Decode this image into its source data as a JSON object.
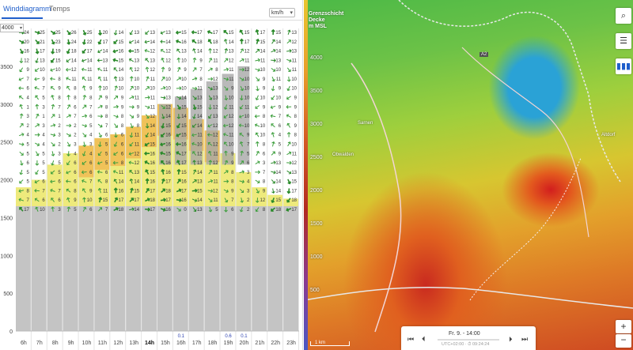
{
  "tabs": [
    {
      "label": "Winddiagramm",
      "active": true
    },
    {
      "label": "Temps",
      "active": false
    }
  ],
  "unit_select": {
    "value": "km/h"
  },
  "altitude_select": {
    "value": "4000"
  },
  "diagram": {
    "y_ticks": [
      "0",
      "500",
      "1000",
      "1500",
      "2000",
      "2500",
      "3000",
      "3500"
    ],
    "hours": [
      "6h",
      "7h",
      "8h",
      "9h",
      "10h",
      "11h",
      "12h",
      "13h",
      "14h",
      "15h",
      "16h",
      "17h",
      "18h",
      "19h",
      "20h",
      "21h",
      "22h",
      "23h"
    ],
    "current_hour": "14h",
    "precip": {
      "16h": "0.1",
      "19h": "0.6",
      "20h": "0.1"
    },
    "colors": {
      "terrain": "#c4c4c4",
      "cloud": "#a8a8a8",
      "boundary_low": "#e8e350",
      "boundary_high": "#f1b14a",
      "arrow": "#2a8a2a"
    }
  },
  "wind_columns": {
    "6h": [
      "24",
      "20",
      "16",
      "12",
      "9",
      "7",
      "6",
      "4",
      "1",
      "3",
      "2",
      "4",
      "5",
      "5",
      "6",
      "5",
      "5",
      "8",
      "7",
      "17"
    ],
    "7h": [
      "25",
      "21",
      "17",
      "13",
      "10",
      "9",
      "7",
      "5",
      "3",
      "1",
      "3",
      "4",
      "4",
      "5",
      "5",
      "5",
      "6",
      "7",
      "6",
      "10"
    ],
    "8h": [
      "25",
      "23",
      "19",
      "15",
      "10",
      "8",
      "9",
      "8",
      "7",
      "1",
      "2",
      "3",
      "2",
      "3",
      "5",
      "5",
      "6",
      "7",
      "6",
      "3"
    ],
    "9h": [
      "26",
      "24",
      "18",
      "14",
      "12",
      "11",
      "8",
      "8",
      "6",
      "7",
      "2",
      "2",
      "3",
      "4",
      "6",
      "6",
      "6",
      "8",
      "9",
      "5"
    ],
    "10h": [
      "25",
      "22",
      "17",
      "14",
      "11",
      "11",
      "9",
      "8",
      "7",
      "6",
      "5",
      "4",
      "3",
      "4",
      "6",
      "6",
      "7",
      "9",
      "10",
      "6"
    ],
    "11h": [
      "20",
      "17",
      "14",
      "13",
      "11",
      "11",
      "10",
      "9",
      "8",
      "8",
      "7",
      "6",
      "5",
      "5",
      "5",
      "6",
      "8",
      "11",
      "15",
      "7"
    ],
    "12h": [
      "14",
      "15",
      "16",
      "15",
      "14",
      "13",
      "10",
      "9",
      "9",
      "8",
      "8",
      "6",
      "6",
      "6",
      "8",
      "11",
      "14",
      "16",
      "17",
      "18"
    ],
    "13h": [
      "13",
      "14",
      "15",
      "13",
      "12",
      "10",
      "10",
      "11",
      "9",
      "9",
      "8",
      "11",
      "11",
      "12",
      "12",
      "13",
      "14",
      "15",
      "17",
      "14"
    ],
    "14h": [
      "13",
      "14",
      "12",
      "13",
      "12",
      "11",
      "10",
      "11",
      "11",
      "12",
      "14",
      "14",
      "15",
      "16",
      "16",
      "15",
      "16",
      "17",
      "18",
      "17"
    ],
    "15h": [
      "13",
      "14",
      "12",
      "12",
      "9",
      "10",
      "10",
      "13",
      "12",
      "14",
      "15",
      "16",
      "16",
      "15",
      "16",
      "16",
      "17",
      "18",
      "17",
      "16"
    ],
    "16h": [
      "15",
      "16",
      "13",
      "10",
      "9",
      "10",
      "10",
      "14",
      "15",
      "14",
      "15",
      "15",
      "16",
      "17",
      "17",
      "15",
      "16",
      "17",
      "16",
      "0"
    ],
    "17h": [
      "17",
      "18",
      "14",
      "9",
      "7",
      "8",
      "11",
      "13",
      "15",
      "14",
      "14",
      "11",
      "10",
      "12",
      "13",
      "14",
      "13",
      "15",
      "14",
      "13"
    ],
    "18h": [
      "17",
      "18",
      "12",
      "11",
      "8",
      "12",
      "13",
      "13",
      "12",
      "13",
      "12",
      "12",
      "12",
      "11",
      "12",
      "11",
      "11",
      "12",
      "11",
      "5"
    ],
    "19h": [
      "15",
      "14",
      "13",
      "12",
      "11",
      "11",
      "9",
      "10",
      "11",
      "12",
      "12",
      "11",
      "10",
      "9",
      "9",
      "8",
      "8",
      "9",
      "7",
      "6"
    ],
    "20h": [
      "15",
      "17",
      "12",
      "11",
      "12",
      "10",
      "10",
      "10",
      "11",
      "10",
      "10",
      "9",
      "7",
      "5",
      "6",
      "3",
      "4",
      "3",
      "2",
      "2"
    ],
    "21h": [
      "17",
      "15",
      "14",
      "11",
      "10",
      "9",
      "9",
      "10",
      "9",
      "8",
      "10",
      "10",
      "8",
      "6",
      "3",
      "7",
      "8",
      "9",
      "12",
      "8"
    ],
    "22h": [
      "15",
      "14",
      "14",
      "13",
      "10",
      "11",
      "9",
      "10",
      "9",
      "7",
      "6",
      "4",
      "5",
      "9",
      "13",
      "14",
      "14",
      "14",
      "15",
      "18"
    ],
    "23h": [
      "13",
      "12",
      "13",
      "11",
      "11",
      "10",
      "10",
      "9",
      "9",
      "8",
      "9",
      "8",
      "10",
      "11",
      "12",
      "13",
      "15",
      "17",
      "18",
      "17"
    ]
  },
  "map": {
    "title_lines": [
      "Grenzschicht",
      "Decke",
      "m MSL"
    ],
    "y_ticks": [
      "4000",
      "3500",
      "3000",
      "2500",
      "2000",
      "1500",
      "1000",
      "500"
    ],
    "towns": [
      "Sarnen",
      "Obwalden",
      "Altdorf",
      "A2"
    ],
    "buttons": {
      "search": "search-icon",
      "settings": "sliders-icon",
      "chart": "bar-chart-icon",
      "zoom_in": "+",
      "zoom_out": "−"
    },
    "time_label": "Fr. 9. - 14:00",
    "time_sub": "UTC+02:00 · ⏱ 09:24:24",
    "scale_label": "1 km"
  }
}
